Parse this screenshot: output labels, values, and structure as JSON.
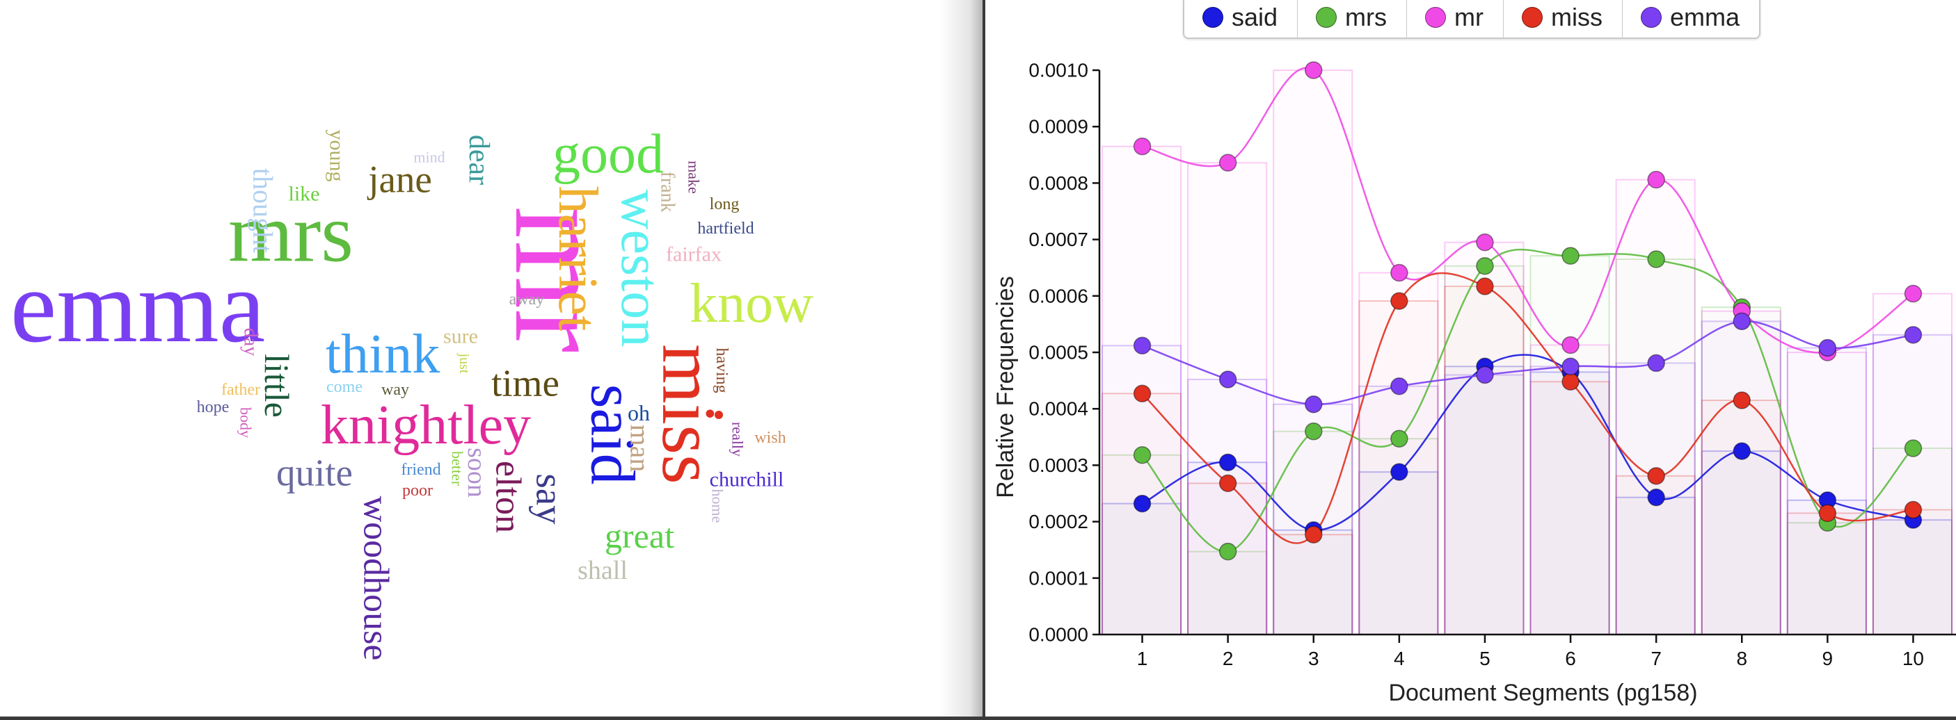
{
  "word_cloud": {
    "words": [
      {
        "text": "emma",
        "color": "#7b3ff2",
        "size": 150
      },
      {
        "text": "mrs",
        "color": "#5dbb3f",
        "size": 120
      },
      {
        "text": "mr",
        "color": "#f04ae6",
        "size": 190
      },
      {
        "text": "good",
        "color": "#5ee04a",
        "size": 80
      },
      {
        "text": "harriet",
        "color": "#f0b030",
        "size": 80
      },
      {
        "text": "weston",
        "color": "#5ef0f0",
        "size": 80
      },
      {
        "text": "know",
        "color": "#c6ec4a",
        "size": 80
      },
      {
        "text": "miss",
        "color": "#e13020",
        "size": 110
      },
      {
        "text": "said",
        "color": "#1a1ae0",
        "size": 90
      },
      {
        "text": "think",
        "color": "#3f9ff0",
        "size": 80
      },
      {
        "text": "knightley",
        "color": "#e02a9a",
        "size": 80
      },
      {
        "text": "jane",
        "color": "#6a5a1a",
        "size": 55
      },
      {
        "text": "dear",
        "color": "#3a9a9a",
        "size": 42
      },
      {
        "text": "time",
        "color": "#5a4a14",
        "size": 55
      },
      {
        "text": "little",
        "color": "#1a5a3a",
        "size": 50
      },
      {
        "text": "quite",
        "color": "#6a6aa0",
        "size": 55
      },
      {
        "text": "woodhouse",
        "color": "#5a2aa0",
        "size": 52
      },
      {
        "text": "elton",
        "color": "#7a1a5a",
        "size": 52
      },
      {
        "text": "say",
        "color": "#3a3a8a",
        "size": 55
      },
      {
        "text": "great",
        "color": "#5ad04a",
        "size": 50
      },
      {
        "text": "shall",
        "color": "#bfbfaf",
        "size": 38
      },
      {
        "text": "man",
        "color": "#c0a080",
        "size": 40
      },
      {
        "text": "oh",
        "color": "#1a4aa0",
        "size": 32
      },
      {
        "text": "soon",
        "color": "#b090d0",
        "size": 38
      },
      {
        "text": "churchill",
        "color": "#4a2ad0",
        "size": 30
      },
      {
        "text": "thought",
        "color": "#b0d0f0",
        "size": 40
      },
      {
        "text": "young",
        "color": "#b0b060",
        "size": 30
      },
      {
        "text": "like",
        "color": "#6ad03a",
        "size": 30
      },
      {
        "text": "mind",
        "color": "#c8c8e8",
        "size": 22
      },
      {
        "text": "frank",
        "color": "#c0b090",
        "size": 28
      },
      {
        "text": "make",
        "color": "#7a3a7a",
        "size": 22
      },
      {
        "text": "long",
        "color": "#6a5a1a",
        "size": 24
      },
      {
        "text": "hartfield",
        "color": "#3a4a8a",
        "size": 24
      },
      {
        "text": "fairfax",
        "color": "#f0b0c0",
        "size": 30
      },
      {
        "text": "away",
        "color": "#a0a0a0",
        "size": 24
      },
      {
        "text": "sure",
        "color": "#d0c080",
        "size": 30
      },
      {
        "text": "day",
        "color": "#d060c0",
        "size": 28
      },
      {
        "text": "father",
        "color": "#f0c060",
        "size": 24
      },
      {
        "text": "come",
        "color": "#8ad0f0",
        "size": 24
      },
      {
        "text": "way",
        "color": "#5a5a3a",
        "size": 24
      },
      {
        "text": "just",
        "color": "#c0d040",
        "size": 20
      },
      {
        "text": "hope",
        "color": "#5a5a9a",
        "size": 24
      },
      {
        "text": "body",
        "color": "#d05ac0",
        "size": 22
      },
      {
        "text": "friend",
        "color": "#4a8ad0",
        "size": 24
      },
      {
        "text": "poor",
        "color": "#c03a3a",
        "size": 24
      },
      {
        "text": "better",
        "color": "#8ad040",
        "size": 22
      },
      {
        "text": "having",
        "color": "#8a4a2a",
        "size": 24
      },
      {
        "text": "really",
        "color": "#8a3aa0",
        "size": 22
      },
      {
        "text": "wish",
        "color": "#d09060",
        "size": 24
      },
      {
        "text": "home",
        "color": "#c0b0d0",
        "size": 22
      }
    ]
  },
  "legend": [
    {
      "label": "said",
      "color": "#1a1ae0"
    },
    {
      "label": "mrs",
      "color": "#5dbb3f"
    },
    {
      "label": "mr",
      "color": "#f04ae6"
    },
    {
      "label": "miss",
      "color": "#e13020"
    },
    {
      "label": "emma",
      "color": "#7b3ff2"
    }
  ],
  "chart_data": {
    "type": "line",
    "xlabel": "Document Segments (pg158)",
    "ylabel": "Relative Frequencies",
    "x": [
      1,
      2,
      3,
      4,
      5,
      6,
      7,
      8,
      9,
      10
    ],
    "ylim": [
      0,
      0.001
    ],
    "yticks": [
      "0.0000",
      "0.0001",
      "0.0002",
      "0.0003",
      "0.0004",
      "0.0005",
      "0.0006",
      "0.0007",
      "0.0008",
      "0.0009",
      "0.0010"
    ],
    "series": [
      {
        "name": "said",
        "color": "#1a1ae0",
        "values": [
          0.000232,
          0.000305,
          0.000185,
          0.000288,
          0.000475,
          0.000465,
          0.000243,
          0.000325,
          0.000238,
          0.000203
        ]
      },
      {
        "name": "mrs",
        "color": "#5dbb3f",
        "values": [
          0.000318,
          0.000147,
          0.00036,
          0.000347,
          0.000653,
          0.000671,
          0.000665,
          0.00058,
          0.000198,
          0.00033
        ]
      },
      {
        "name": "mr",
        "color": "#f04ae6",
        "values": [
          0.000865,
          0.000836,
          0.001,
          0.000641,
          0.000695,
          0.000513,
          0.000806,
          0.000573,
          0.0005,
          0.000604
        ]
      },
      {
        "name": "miss",
        "color": "#e13020",
        "values": [
          0.000427,
          0.000268,
          0.000177,
          0.000591,
          0.000617,
          0.000448,
          0.000281,
          0.000415,
          0.000215,
          0.000221
        ]
      },
      {
        "name": "emma",
        "color": "#7b3ff2",
        "values": [
          0.000512,
          0.000452,
          0.000408,
          0.00044,
          0.00046,
          0.000475,
          0.000481,
          0.000555,
          0.000508,
          0.000531
        ]
      }
    ]
  }
}
